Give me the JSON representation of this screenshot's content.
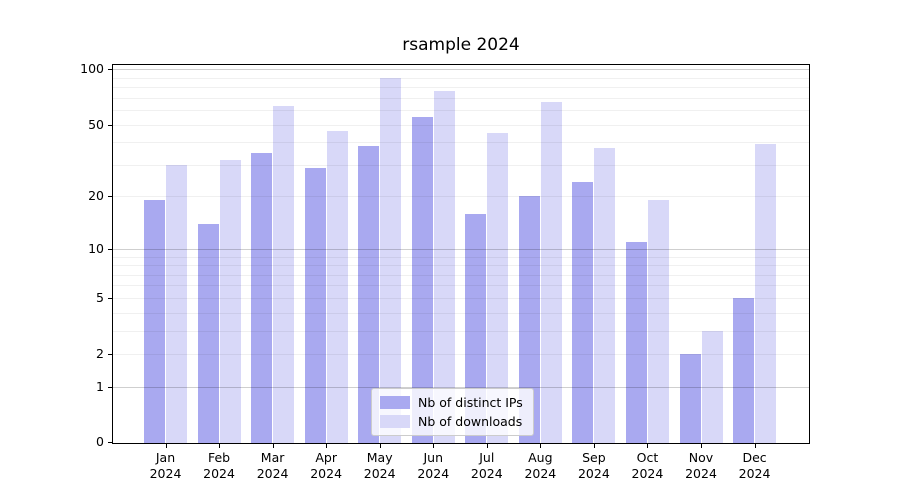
{
  "title": "rsample 2024",
  "colors": {
    "ips_bar": "#a9a9f0",
    "downloads_bar": "#d8d8f8",
    "spine": "#000000",
    "grid_major": "rgba(0,0,0,0.19)",
    "grid_minor": "rgba(0,0,0,0.06)",
    "figure_bg": "#ffffff",
    "legend_border": "#cccccc"
  },
  "chart_data": {
    "type": "bar",
    "title": "rsample 2024",
    "scale": "log1p",
    "grid": true,
    "legend_position": "lower center",
    "categories": [
      "Jan 2024",
      "Feb 2024",
      "Mar 2024",
      "Apr 2024",
      "May 2024",
      "Jun 2024",
      "Jul 2024",
      "Aug 2024",
      "Sep 2024",
      "Oct 2024",
      "Nov 2024",
      "Dec 2024"
    ],
    "series": [
      {
        "name": "Nb of distinct IPs",
        "values": [
          19,
          14,
          35,
          29,
          38,
          55,
          16,
          20,
          24,
          11,
          2,
          5
        ]
      },
      {
        "name": "Nb of downloads",
        "values": [
          30,
          32,
          63,
          46,
          90,
          76,
          45,
          66,
          37,
          19,
          3,
          39
        ]
      }
    ],
    "xlabel": "",
    "ylabel": "",
    "yticks": [
      100,
      50,
      20,
      10,
      5,
      2,
      1,
      0
    ],
    "minor_gridlines": [
      2,
      3,
      4,
      5,
      6,
      7,
      8,
      9,
      20,
      30,
      40,
      50,
      60,
      70,
      80,
      90
    ],
    "major_gridlines": [
      1,
      10,
      100
    ],
    "ylim": [
      0,
      107
    ]
  }
}
